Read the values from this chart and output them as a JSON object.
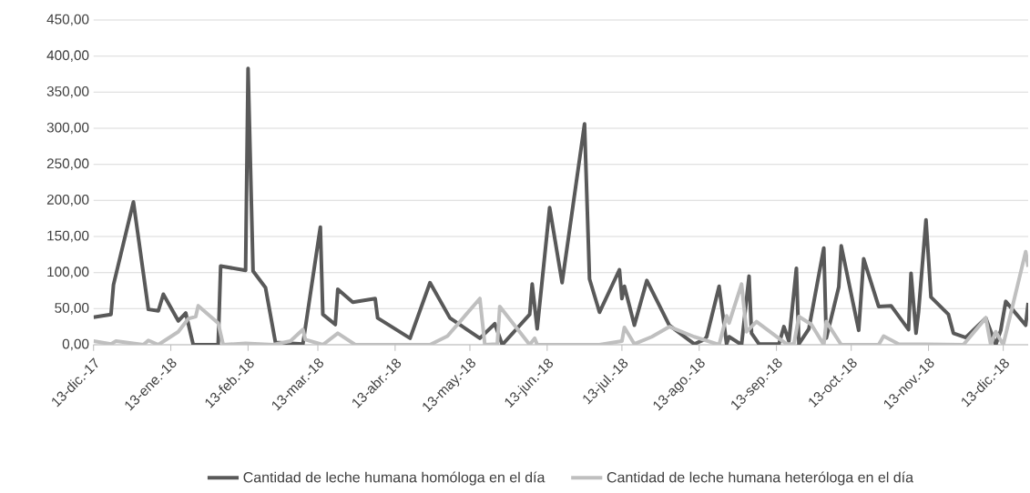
{
  "chart_data": {
    "type": "line",
    "xlim": [
      "2017-12-13",
      "2018-12-23"
    ],
    "xticks": [
      {
        "value": "2017-12-13",
        "label": "13-dic.-17"
      },
      {
        "value": "2018-01-13",
        "label": "13-ene.-18"
      },
      {
        "value": "2018-02-13",
        "label": "13-feb.-18"
      },
      {
        "value": "2018-03-13",
        "label": "13-mar.-18"
      },
      {
        "value": "2018-04-13",
        "label": "13-abr.-18"
      },
      {
        "value": "2018-05-13",
        "label": "13-may.-18"
      },
      {
        "value": "2018-06-13",
        "label": "13-jun.-18"
      },
      {
        "value": "2018-07-13",
        "label": "13-jul.-18"
      },
      {
        "value": "2018-08-13",
        "label": "13-ago.-18"
      },
      {
        "value": "2018-09-13",
        "label": "13-sep.-18"
      },
      {
        "value": "2018-10-13",
        "label": "13-oct.-18"
      },
      {
        "value": "2018-11-13",
        "label": "13-nov.-18"
      },
      {
        "value": "2018-12-13",
        "label": "13-dic.-18"
      }
    ],
    "ylim": [
      0,
      450
    ],
    "yticks": [
      {
        "value": 0,
        "label": "0,00"
      },
      {
        "value": 50,
        "label": "50,00"
      },
      {
        "value": 100,
        "label": "100,00"
      },
      {
        "value": 150,
        "label": "150,00"
      },
      {
        "value": 200,
        "label": "200,00"
      },
      {
        "value": 250,
        "label": "250,00"
      },
      {
        "value": 300,
        "label": "300,00"
      },
      {
        "value": 350,
        "label": "350,00"
      },
      {
        "value": 400,
        "label": "400,00"
      },
      {
        "value": 450,
        "label": "450,00"
      }
    ],
    "grid": "y",
    "legend": "bottom",
    "series": [
      {
        "name": "Cantidad de leche humana homóloga en el día",
        "color": "#595959",
        "x": [
          "2017-12-13",
          "2017-12-20",
          "2017-12-21",
          "2017-12-29",
          "2018-01-04",
          "2018-01-08",
          "2018-01-10",
          "2018-01-16",
          "2018-01-19",
          "2018-01-22",
          "2018-02-01",
          "2018-02-02",
          "2018-02-12",
          "2018-02-13",
          "2018-02-15",
          "2018-02-20",
          "2018-02-24",
          "2018-03-07",
          "2018-03-14",
          "2018-03-15",
          "2018-03-20",
          "2018-03-21",
          "2018-03-27",
          "2018-04-05",
          "2018-04-06",
          "2018-04-19",
          "2018-04-27",
          "2018-05-05",
          "2018-05-17",
          "2018-05-23",
          "2018-05-26",
          "2018-06-06",
          "2018-06-07",
          "2018-06-09",
          "2018-06-14",
          "2018-06-19",
          "2018-06-28",
          "2018-06-30",
          "2018-07-04",
          "2018-07-12",
          "2018-07-13",
          "2018-07-14",
          "2018-07-18",
          "2018-07-23",
          "2018-08-01",
          "2018-08-11",
          "2018-08-15",
          "2018-08-16",
          "2018-08-21",
          "2018-08-24",
          "2018-08-25",
          "2018-08-30",
          "2018-09-02",
          "2018-09-03",
          "2018-09-06",
          "2018-09-14",
          "2018-09-16",
          "2018-09-18",
          "2018-09-21",
          "2018-09-22",
          "2018-09-26",
          "2018-10-02",
          "2018-10-03",
          "2018-10-08",
          "2018-10-09",
          "2018-10-16",
          "2018-10-18",
          "2018-10-24",
          "2018-10-29",
          "2018-11-05",
          "2018-11-06",
          "2018-11-08",
          "2018-11-09",
          "2018-11-12",
          "2018-11-14",
          "2018-11-21",
          "2018-11-23",
          "2018-11-28",
          "2018-12-06",
          "2018-12-10",
          "2018-12-12",
          "2018-12-14",
          "2018-12-22",
          "2018-12-23"
        ],
        "values": [
          38,
          42,
          83,
          198,
          49,
          47,
          70,
          33,
          44,
          0,
          0,
          109,
          103,
          383,
          102,
          79,
          3,
          1,
          163,
          42,
          28,
          77,
          59,
          64,
          37,
          9,
          86,
          37,
          9,
          29,
          0,
          42,
          84,
          22,
          190,
          86,
          306,
          91,
          45,
          104,
          64,
          81,
          27,
          89,
          27,
          1,
          7,
          11,
          81,
          1,
          11,
          0,
          95,
          16,
          1,
          1,
          25,
          5,
          106,
          1,
          22,
          134,
          9,
          80,
          137,
          20,
          119,
          53,
          54,
          21,
          99,
          16,
          45,
          173,
          66,
          42,
          16,
          10,
          37,
          0,
          20,
          60,
          27,
          58
        ]
      },
      {
        "name": "Cantidad de leche humana heteróloga en el día",
        "color": "#bfbfbf",
        "x": [
          "2017-12-13",
          "2017-12-20",
          "2017-12-22",
          "2018-01-02",
          "2018-01-04",
          "2018-01-08",
          "2018-01-16",
          "2018-01-20",
          "2018-01-23",
          "2018-01-24",
          "2018-02-01",
          "2018-02-03",
          "2018-02-12",
          "2018-02-23",
          "2018-03-02",
          "2018-03-07",
          "2018-03-08",
          "2018-03-15",
          "2018-03-21",
          "2018-03-28",
          "2018-04-27",
          "2018-05-04",
          "2018-05-17",
          "2018-05-19",
          "2018-05-24",
          "2018-05-25",
          "2018-06-06",
          "2018-06-08",
          "2018-06-09",
          "2018-07-04",
          "2018-07-13",
          "2018-07-14",
          "2018-07-18",
          "2018-07-25",
          "2018-08-01",
          "2018-08-11",
          "2018-08-21",
          "2018-08-24",
          "2018-08-25",
          "2018-08-30",
          "2018-09-01",
          "2018-09-05",
          "2018-09-17",
          "2018-09-20",
          "2018-09-22",
          "2018-09-27",
          "2018-10-02",
          "2018-10-03",
          "2018-10-09",
          "2018-10-24",
          "2018-10-26",
          "2018-11-01",
          "2018-11-27",
          "2018-12-06",
          "2018-12-08",
          "2018-12-10",
          "2018-12-13",
          "2018-12-22",
          "2018-12-23"
        ],
        "values": [
          5,
          1,
          5,
          0,
          6,
          0,
          18,
          36,
          39,
          54,
          30,
          0,
          2,
          0,
          5,
          21,
          7,
          0,
          16,
          0,
          0,
          12,
          64,
          0,
          1,
          53,
          0,
          9,
          0,
          0,
          5,
          24,
          1,
          11,
          25,
          11,
          0,
          40,
          30,
          84,
          18,
          32,
          1,
          1,
          39,
          28,
          0,
          32,
          0,
          0,
          12,
          1,
          0,
          37,
          0,
          18,
          0,
          129,
          108
        ]
      }
    ]
  }
}
